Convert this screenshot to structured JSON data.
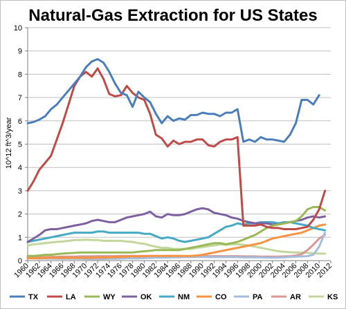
{
  "chart_data": {
    "type": "line",
    "title": "Natural-Gas Extraction for US States",
    "ylabel": "10^12 ft^3/year",
    "xlabel": "",
    "xlim": [
      1960,
      2012
    ],
    "ylim": [
      0,
      10
    ],
    "y_ticks": [
      "0",
      "1",
      "2",
      "3",
      "4",
      "5",
      "6",
      "7",
      "8",
      "9",
      "10"
    ],
    "x_ticks": [
      "1960",
      "1962",
      "1964",
      "1966",
      "1968",
      "1970",
      "1972",
      "1974",
      "1976",
      "1978",
      "1980",
      "1982",
      "1984",
      "1986",
      "1988",
      "1990",
      "1992",
      "1994",
      "1996",
      "1998",
      "2000",
      "2002",
      "2004",
      "2006",
      "2008",
      "2010",
      "2012"
    ],
    "grid": "horizontal",
    "legend_position": "bottom",
    "series": [
      {
        "name": "TX",
        "color": "#4a7ebb",
        "x": [
          1960,
          1961,
          1962,
          1963,
          1964,
          1965,
          1966,
          1967,
          1968,
          1969,
          1970,
          1971,
          1972,
          1973,
          1974,
          1975,
          1976,
          1977,
          1978,
          1979,
          1980,
          1981,
          1982,
          1983,
          1984,
          1985,
          1986,
          1987,
          1988,
          1989,
          1990,
          1991,
          1992,
          1993,
          1994,
          1995,
          1996,
          1997,
          1998,
          1999,
          2000,
          2001,
          2002,
          2003,
          2004,
          2005,
          2006,
          2007,
          2008,
          2009,
          2010,
          2011
        ],
        "values": [
          5.9,
          5.95,
          6.05,
          6.2,
          6.5,
          6.7,
          7.0,
          7.3,
          7.6,
          7.9,
          8.3,
          8.55,
          8.65,
          8.5,
          8.1,
          7.6,
          7.2,
          7.1,
          6.6,
          7.25,
          7.0,
          6.8,
          6.3,
          5.9,
          6.2,
          6.0,
          6.1,
          6.05,
          6.25,
          6.25,
          6.35,
          6.3,
          6.3,
          6.2,
          6.35,
          6.35,
          6.5,
          5.1,
          5.2,
          5.1,
          5.3,
          5.2,
          5.2,
          5.15,
          5.1,
          5.4,
          5.9,
          6.9,
          6.9,
          6.7,
          7.1,
          null
        ]
      },
      {
        "name": "LA",
        "color": "#be4b48",
        "x": [
          1960,
          1961,
          1962,
          1963,
          1964,
          1965,
          1966,
          1967,
          1968,
          1969,
          1970,
          1971,
          1972,
          1973,
          1974,
          1975,
          1976,
          1977,
          1978,
          1979,
          1980,
          1981,
          1982,
          1983,
          1984,
          1985,
          1986,
          1987,
          1988,
          1989,
          1990,
          1991,
          1992,
          1993,
          1994,
          1995,
          1996,
          1997,
          1998,
          1999,
          2000,
          2001,
          2002,
          2003,
          2004,
          2005,
          2006,
          2007,
          2008,
          2009,
          2010,
          2011
        ],
        "values": [
          3.0,
          3.4,
          3.9,
          4.2,
          4.5,
          5.2,
          5.9,
          6.7,
          7.5,
          7.9,
          8.1,
          7.9,
          8.25,
          7.8,
          7.15,
          7.05,
          7.1,
          7.5,
          7.2,
          7.0,
          6.9,
          6.3,
          5.4,
          5.25,
          4.9,
          5.15,
          5.0,
          5.1,
          5.1,
          5.2,
          5.2,
          4.95,
          4.9,
          5.1,
          5.2,
          5.2,
          5.3,
          1.5,
          1.5,
          1.5,
          1.55,
          1.45,
          1.4,
          1.4,
          1.35,
          1.35,
          1.35,
          1.4,
          1.45,
          1.75,
          2.2,
          3.0
        ]
      },
      {
        "name": "WY",
        "color": "#98b954",
        "x": [
          1960,
          1961,
          1962,
          1963,
          1964,
          1965,
          1966,
          1967,
          1968,
          1969,
          1970,
          1971,
          1972,
          1973,
          1974,
          1975,
          1976,
          1977,
          1978,
          1979,
          1980,
          1981,
          1982,
          1983,
          1984,
          1985,
          1986,
          1987,
          1988,
          1989,
          1990,
          1991,
          1992,
          1993,
          1994,
          1995,
          1996,
          1997,
          1998,
          1999,
          2000,
          2001,
          2002,
          2003,
          2004,
          2005,
          2006,
          2007,
          2008,
          2009,
          2010,
          2011
        ],
        "values": [
          0.2,
          0.2,
          0.22,
          0.25,
          0.25,
          0.28,
          0.3,
          0.32,
          0.33,
          0.35,
          0.35,
          0.35,
          0.35,
          0.35,
          0.35,
          0.35,
          0.35,
          0.35,
          0.35,
          0.38,
          0.4,
          0.42,
          0.45,
          0.45,
          0.45,
          0.45,
          0.45,
          0.5,
          0.55,
          0.6,
          0.65,
          0.7,
          0.75,
          0.75,
          0.7,
          0.75,
          0.8,
          0.9,
          1.0,
          1.1,
          1.25,
          1.4,
          1.5,
          1.55,
          1.6,
          1.65,
          1.7,
          1.9,
          2.2,
          2.3,
          2.3,
          2.15
        ]
      },
      {
        "name": "OK",
        "color": "#7d60a0",
        "x": [
          1960,
          1961,
          1962,
          1963,
          1964,
          1965,
          1966,
          1967,
          1968,
          1969,
          1970,
          1971,
          1972,
          1973,
          1974,
          1975,
          1976,
          1977,
          1978,
          1979,
          1980,
          1981,
          1982,
          1983,
          1984,
          1985,
          1986,
          1987,
          1988,
          1989,
          1990,
          1991,
          1992,
          1993,
          1994,
          1995,
          1996,
          1997,
          1998,
          1999,
          2000,
          2001,
          2002,
          2003,
          2004,
          2005,
          2006,
          2007,
          2008,
          2009,
          2010,
          2011
        ],
        "values": [
          0.8,
          0.95,
          1.1,
          1.3,
          1.35,
          1.35,
          1.4,
          1.45,
          1.5,
          1.55,
          1.6,
          1.7,
          1.75,
          1.7,
          1.65,
          1.65,
          1.75,
          1.85,
          1.9,
          1.95,
          2.0,
          2.1,
          1.9,
          1.85,
          2.0,
          1.95,
          1.95,
          2.0,
          2.1,
          2.2,
          2.25,
          2.2,
          2.05,
          2.0,
          1.95,
          1.85,
          1.8,
          1.7,
          1.65,
          1.6,
          1.6,
          1.6,
          1.55,
          1.55,
          1.6,
          1.65,
          1.7,
          1.75,
          1.85,
          1.9,
          1.85,
          1.9
        ]
      },
      {
        "name": "NM",
        "color": "#46aac5",
        "x": [
          1960,
          1961,
          1962,
          1963,
          1964,
          1965,
          1966,
          1967,
          1968,
          1969,
          1970,
          1971,
          1972,
          1973,
          1974,
          1975,
          1976,
          1977,
          1978,
          1979,
          1980,
          1981,
          1982,
          1983,
          1984,
          1985,
          1986,
          1987,
          1988,
          1989,
          1990,
          1991,
          1992,
          1993,
          1994,
          1995,
          1996,
          1997,
          1998,
          1999,
          2000,
          2001,
          2002,
          2003,
          2004,
          2005,
          2006,
          2007,
          2008,
          2009,
          2010,
          2011
        ],
        "values": [
          0.8,
          0.85,
          0.9,
          0.95,
          1.0,
          1.05,
          1.1,
          1.15,
          1.2,
          1.2,
          1.2,
          1.2,
          1.25,
          1.25,
          1.2,
          1.2,
          1.2,
          1.2,
          1.2,
          1.2,
          1.15,
          1.15,
          1.05,
          0.95,
          1.0,
          0.95,
          0.85,
          0.8,
          0.85,
          0.9,
          0.95,
          1.0,
          1.15,
          1.3,
          1.45,
          1.5,
          1.6,
          1.55,
          1.6,
          1.6,
          1.65,
          1.65,
          1.65,
          1.6,
          1.65,
          1.65,
          1.6,
          1.55,
          1.5,
          1.4,
          1.35,
          1.3
        ]
      },
      {
        "name": "CO",
        "color": "#f69240",
        "x": [
          1960,
          1961,
          1962,
          1963,
          1964,
          1965,
          1966,
          1967,
          1968,
          1969,
          1970,
          1971,
          1972,
          1973,
          1974,
          1975,
          1976,
          1977,
          1978,
          1979,
          1980,
          1981,
          1982,
          1983,
          1984,
          1985,
          1986,
          1987,
          1988,
          1989,
          1990,
          1991,
          1992,
          1993,
          1994,
          1995,
          1996,
          1997,
          1998,
          1999,
          2000,
          2001,
          2002,
          2003,
          2004,
          2005,
          2006,
          2007,
          2008,
          2009,
          2010,
          2011
        ],
        "values": [
          0.1,
          0.1,
          0.1,
          0.12,
          0.12,
          0.12,
          0.12,
          0.12,
          0.12,
          0.12,
          0.12,
          0.12,
          0.13,
          0.13,
          0.14,
          0.15,
          0.16,
          0.17,
          0.18,
          0.18,
          0.19,
          0.2,
          0.2,
          0.2,
          0.2,
          0.2,
          0.2,
          0.2,
          0.2,
          0.22,
          0.25,
          0.3,
          0.35,
          0.4,
          0.45,
          0.5,
          0.55,
          0.6,
          0.65,
          0.7,
          0.75,
          0.85,
          0.95,
          1.0,
          1.05,
          1.1,
          1.15,
          1.2,
          1.3,
          1.4,
          1.5,
          1.55
        ]
      },
      {
        "name": "PA",
        "color": "#a5bddc",
        "x": [
          1960,
          1961,
          1962,
          1963,
          1964,
          1965,
          1966,
          1967,
          1968,
          1969,
          1970,
          1971,
          1972,
          1973,
          1974,
          1975,
          1976,
          1977,
          1978,
          1979,
          1980,
          1981,
          1982,
          1983,
          1984,
          1985,
          1986,
          1987,
          1988,
          1989,
          1990,
          1991,
          1992,
          1993,
          1994,
          1995,
          1996,
          1997,
          1998,
          1999,
          2000,
          2001,
          2002,
          2003,
          2004,
          2005,
          2006,
          2007,
          2008,
          2009,
          2010,
          2011
        ],
        "values": [
          0.1,
          0.1,
          0.09,
          0.09,
          0.09,
          0.08,
          0.08,
          0.08,
          0.08,
          0.08,
          0.07,
          0.07,
          0.07,
          0.07,
          0.08,
          0.08,
          0.09,
          0.1,
          0.1,
          0.1,
          0.11,
          0.12,
          0.13,
          0.13,
          0.13,
          0.14,
          0.14,
          0.15,
          0.15,
          0.16,
          0.16,
          0.15,
          0.15,
          0.15,
          0.15,
          0.15,
          0.15,
          0.14,
          0.14,
          0.14,
          0.14,
          0.13,
          0.13,
          0.13,
          0.14,
          0.16,
          0.17,
          0.18,
          0.19,
          0.25,
          0.6,
          1.2
        ]
      },
      {
        "name": "AR",
        "color": "#d99694",
        "x": [
          1960,
          1961,
          1962,
          1963,
          1964,
          1965,
          1966,
          1967,
          1968,
          1969,
          1970,
          1971,
          1972,
          1973,
          1974,
          1975,
          1976,
          1977,
          1978,
          1979,
          1980,
          1981,
          1982,
          1983,
          1984,
          1985,
          1986,
          1987,
          1988,
          1989,
          1990,
          1991,
          1992,
          1993,
          1994,
          1995,
          1996,
          1997,
          1998,
          1999,
          2000,
          2001,
          2002,
          2003,
          2004,
          2005,
          2006,
          2007,
          2008,
          2009,
          2010,
          2011
        ],
        "values": [
          0.15,
          0.15,
          0.15,
          0.15,
          0.16,
          0.16,
          0.17,
          0.17,
          0.17,
          0.18,
          0.18,
          0.18,
          0.19,
          0.19,
          0.19,
          0.19,
          0.2,
          0.2,
          0.2,
          0.2,
          0.2,
          0.2,
          0.2,
          0.2,
          0.2,
          0.2,
          0.2,
          0.19,
          0.19,
          0.19,
          0.19,
          0.19,
          0.19,
          0.19,
          0.19,
          0.19,
          0.19,
          0.18,
          0.18,
          0.18,
          0.17,
          0.17,
          0.17,
          0.17,
          0.18,
          0.19,
          0.22,
          0.28,
          0.45,
          0.68,
          0.95,
          1.1
        ]
      },
      {
        "name": "KS",
        "color": "#c3d69b",
        "x": [
          1960,
          1961,
          1962,
          1963,
          1964,
          1965,
          1966,
          1967,
          1968,
          1969,
          1970,
          1971,
          1972,
          1973,
          1974,
          1975,
          1976,
          1977,
          1978,
          1979,
          1980,
          1981,
          1982,
          1983,
          1984,
          1985,
          1986,
          1987,
          1988,
          1989,
          1990,
          1991,
          1992,
          1993,
          1994,
          1995,
          1996,
          1997,
          1998,
          1999,
          2000,
          2001,
          2002,
          2003,
          2004,
          2005,
          2006,
          2007,
          2008,
          2009,
          2010,
          2011
        ],
        "values": [
          0.65,
          0.7,
          0.72,
          0.75,
          0.78,
          0.8,
          0.82,
          0.85,
          0.88,
          0.88,
          0.9,
          0.88,
          0.88,
          0.85,
          0.85,
          0.85,
          0.85,
          0.82,
          0.8,
          0.75,
          0.72,
          0.65,
          0.6,
          0.55,
          0.55,
          0.5,
          0.5,
          0.5,
          0.5,
          0.55,
          0.58,
          0.62,
          0.65,
          0.7,
          0.68,
          0.7,
          0.7,
          0.68,
          0.65,
          0.6,
          0.55,
          0.5,
          0.45,
          0.4,
          0.38,
          0.36,
          0.35,
          0.35,
          0.33,
          0.32,
          0.3,
          0.3
        ]
      }
    ]
  }
}
